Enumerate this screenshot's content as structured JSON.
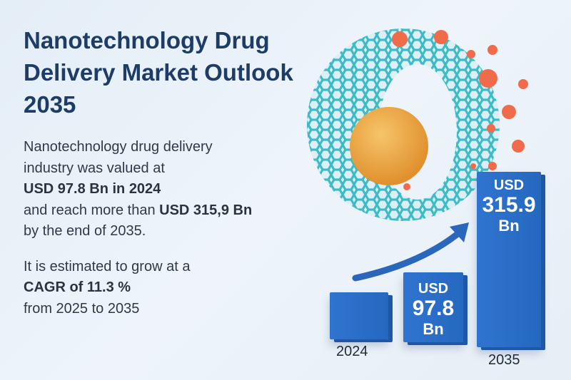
{
  "title": "Nanotechnology Drug Delivery Market Outlook 2035",
  "body": {
    "line1": "Nanotechnology drug delivery",
    "line2": "industry was valued at",
    "line3": "USD 97.8 Bn in 2024",
    "line4_prefix": "and reach more than ",
    "line4_bold": "USD 315,9 Bn",
    "line5": "by the end of 2035.",
    "cagr_line1": "It is estimated to grow at a",
    "cagr_line2": "CAGR of 11.3 %",
    "cagr_line3": "from 2025 to 2035"
  },
  "bars": [
    {
      "year": "2024"
    },
    {
      "currency": "USD",
      "value": "97.8",
      "unit": "Bn"
    },
    {
      "year": "2035",
      "currency": "USD",
      "value": "315.9",
      "unit": "Bn"
    }
  ],
  "colors": {
    "title": "#1d3c66",
    "bar": "#2f74cf",
    "mesh": "#3dbbc7",
    "sphere": "#f0a847",
    "dots": "#ef6b4a"
  }
}
